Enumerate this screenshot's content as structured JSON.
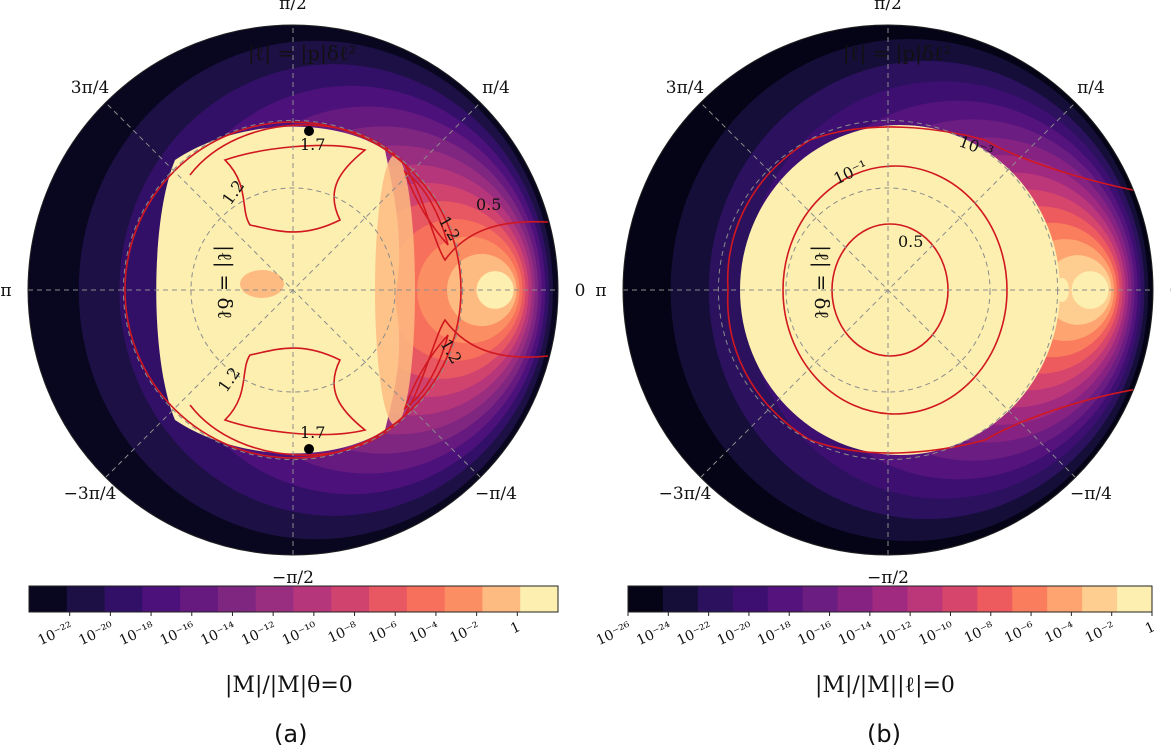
{
  "chart_data": [
    {
      "panel": "(a)",
      "type": "heatmap",
      "projection": "polar",
      "angular_ticks": [
        "0",
        "π/4",
        "π/2",
        "3π/4",
        "π",
        "−3π/4",
        "−π/2",
        "−π/4"
      ],
      "outer_label": "|ℓ| = |p|δℓ²",
      "inner_label": "|ℓ| = δℓ",
      "contour_labels": [
        "0.5",
        "1.2",
        "1.2",
        "1.2",
        "1.2",
        "1.7",
        "1.7"
      ],
      "markers": [
        {
          "label": "1.7",
          "theta": "π/2"
        },
        {
          "label": "1.7",
          "theta": "−π/2"
        }
      ],
      "colorbar": {
        "label": "|M|/|M|θ=0",
        "tick_labels": [
          "10⁻²²",
          "10⁻²⁰",
          "10⁻¹⁸",
          "10⁻¹⁶",
          "10⁻¹⁴",
          "10⁻¹²",
          "10⁻¹⁰",
          "10⁻⁸",
          "10⁻⁶",
          "10⁻⁴",
          "10⁻²",
          "1"
        ],
        "log10_levels": [
          -24,
          -22,
          -20,
          -18,
          -16,
          -14,
          -12,
          -10,
          -8,
          -6,
          -4,
          -2,
          0,
          2
        ],
        "colors": [
          "#09071f",
          "#1c1044",
          "#331067",
          "#4d117b",
          "#661a80",
          "#7f2681",
          "#992d80",
          "#b5367a",
          "#d1436f",
          "#e85862",
          "#f7705c",
          "#fb8f63",
          "#febb81",
          "#fcefb0"
        ]
      },
      "grid": true
    },
    {
      "panel": "(b)",
      "type": "heatmap",
      "projection": "polar",
      "angular_ticks": [
        "0",
        "π/4",
        "π/2",
        "3π/4",
        "π",
        "−3π/4",
        "−π/2",
        "−π/4"
      ],
      "outer_label": "|ℓ| = |p|δℓ²",
      "inner_label": "|ℓ| = δℓ",
      "contour_labels": [
        "0.5",
        "10⁻¹",
        "10⁻³"
      ],
      "colorbar": {
        "label": "|M|/|M||ℓ|=0",
        "tick_labels": [
          "10⁻²⁶",
          "10⁻²⁴",
          "10⁻²²",
          "10⁻²⁰",
          "10⁻¹⁸",
          "10⁻¹⁶",
          "10⁻¹⁴",
          "10⁻¹²",
          "10⁻¹⁰",
          "10⁻⁸",
          "10⁻⁶",
          "10⁻⁴",
          "10⁻²",
          "1"
        ],
        "log10_levels": [
          -26,
          -24,
          -22,
          -20,
          -18,
          -16,
          -14,
          -12,
          -10,
          -8,
          -6,
          -4,
          -2,
          0
        ],
        "colors": [
          "#050416",
          "#150e38",
          "#2b115e",
          "#3d0f71",
          "#55137d",
          "#6c1d81",
          "#862281",
          "#a02a80",
          "#bb3779",
          "#d6456c",
          "#ee5b5e",
          "#fa7e5e",
          "#fea470",
          "#fecd90",
          "#fcefb0"
        ]
      },
      "grid": true
    }
  ]
}
